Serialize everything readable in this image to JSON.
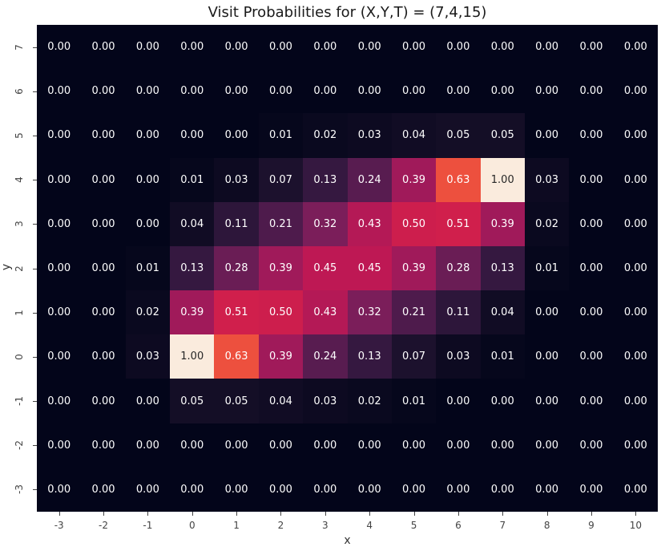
{
  "chart_data": {
    "type": "heatmap",
    "title": "Visit Probabilities for (X,Y,T) = (7,4,15)",
    "xlabel": "x",
    "ylabel": "y",
    "x": [
      -3,
      -2,
      -1,
      0,
      1,
      2,
      3,
      4,
      5,
      6,
      7,
      8,
      9,
      10
    ],
    "y": [
      7,
      6,
      5,
      4,
      3,
      2,
      1,
      0,
      -1,
      -2,
      -3
    ],
    "colormap": "rocket",
    "vmin": 0,
    "vmax": 1,
    "annotations_format": "0.00",
    "values": [
      [
        0.0,
        0.0,
        0.0,
        0.0,
        0.0,
        0.0,
        0.0,
        0.0,
        0.0,
        0.0,
        0.0,
        0.0,
        0.0,
        0.0
      ],
      [
        0.0,
        0.0,
        0.0,
        0.0,
        0.0,
        0.0,
        0.0,
        0.0,
        0.0,
        0.0,
        0.0,
        0.0,
        0.0,
        0.0
      ],
      [
        0.0,
        0.0,
        0.0,
        0.0,
        0.0,
        0.01,
        0.02,
        0.03,
        0.04,
        0.05,
        0.05,
        0.0,
        0.0,
        0.0
      ],
      [
        0.0,
        0.0,
        0.0,
        0.01,
        0.03,
        0.07,
        0.13,
        0.24,
        0.39,
        0.63,
        1.0,
        0.03,
        0.0,
        0.0
      ],
      [
        0.0,
        0.0,
        0.0,
        0.04,
        0.11,
        0.21,
        0.32,
        0.43,
        0.5,
        0.51,
        0.39,
        0.02,
        0.0,
        0.0
      ],
      [
        0.0,
        0.0,
        0.01,
        0.13,
        0.28,
        0.39,
        0.45,
        0.45,
        0.39,
        0.28,
        0.13,
        0.01,
        0.0,
        0.0
      ],
      [
        0.0,
        0.0,
        0.02,
        0.39,
        0.51,
        0.5,
        0.43,
        0.32,
        0.21,
        0.11,
        0.04,
        0.0,
        0.0,
        0.0
      ],
      [
        0.0,
        0.0,
        0.03,
        1.0,
        0.63,
        0.39,
        0.24,
        0.13,
        0.07,
        0.03,
        0.01,
        0.0,
        0.0,
        0.0
      ],
      [
        0.0,
        0.0,
        0.0,
        0.05,
        0.05,
        0.04,
        0.03,
        0.02,
        0.01,
        0.0,
        0.0,
        0.0,
        0.0,
        0.0
      ],
      [
        0.0,
        0.0,
        0.0,
        0.0,
        0.0,
        0.0,
        0.0,
        0.0,
        0.0,
        0.0,
        0.0,
        0.0,
        0.0,
        0.0
      ],
      [
        0.0,
        0.0,
        0.0,
        0.0,
        0.0,
        0.0,
        0.0,
        0.0,
        0.0,
        0.0,
        0.0,
        0.0,
        0.0,
        0.0
      ]
    ],
    "colorbar": false,
    "grid": false
  }
}
